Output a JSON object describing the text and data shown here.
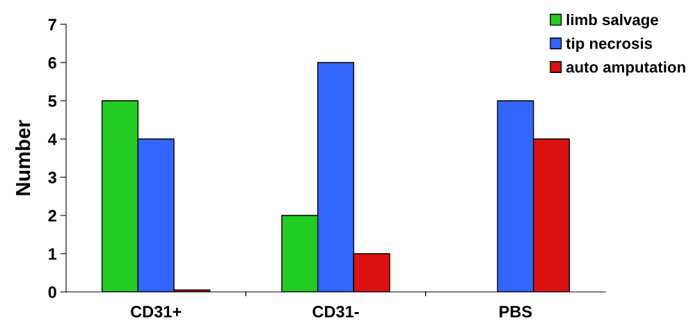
{
  "chart_data": {
    "type": "bar",
    "ylabel": "Number",
    "categories": [
      "CD31+",
      "CD31-",
      "PBS"
    ],
    "series": [
      {
        "name": "limb salvage",
        "color": "#22cc22",
        "values": [
          5,
          2,
          0
        ]
      },
      {
        "name": "tip necrosis",
        "color": "#3366ff",
        "values": [
          4,
          6,
          5
        ]
      },
      {
        "name": "auto amputation",
        "color": "#dd1111",
        "values": [
          0.05,
          1,
          4
        ]
      }
    ],
    "ylim": [
      0,
      7
    ],
    "yticks": [
      0,
      1,
      2,
      3,
      4,
      5,
      6,
      7
    ],
    "grid": false,
    "legend": "top right"
  }
}
